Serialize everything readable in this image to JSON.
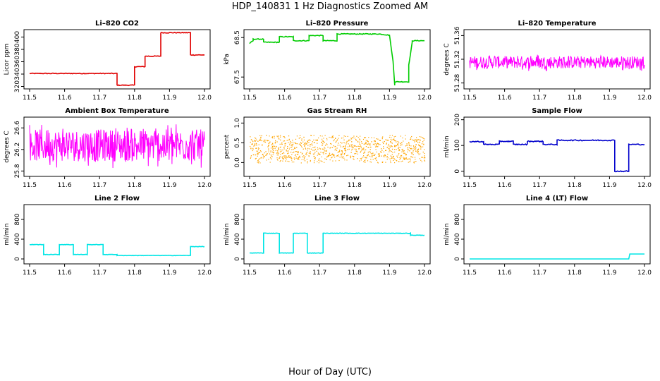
{
  "figure": {
    "title": "HDP_140831  1 Hz Diagnostics Zoomed AM",
    "xlabel": "Hour of Day (UTC)"
  },
  "chart_data": [
    {
      "type": "line",
      "title": "Li–820 CO2",
      "ylabel": "Licor ppm",
      "color": "#e00000",
      "xlim": [
        11.5,
        12.0
      ],
      "ylim": [
        316,
        412
      ],
      "xticks": [
        "11.5",
        "11.6",
        "11.7",
        "11.8",
        "11.9",
        "12.0"
      ],
      "yticks": [
        "320",
        "340",
        "360",
        "380",
        "400"
      ],
      "noise": 0.6,
      "x": [
        11.5,
        11.75,
        11.75,
        11.8,
        11.8,
        11.83,
        11.83,
        11.875,
        11.875,
        11.96,
        11.96,
        12.0
      ],
      "y": [
        341,
        341,
        322,
        322,
        352,
        352,
        369,
        369,
        407,
        407,
        371,
        371
      ]
    },
    {
      "type": "line",
      "title": "Li–820 Pressure",
      "ylabel": "kPa",
      "color": "#00cc00",
      "xlim": [
        11.5,
        12.0
      ],
      "ylim": [
        67.2,
        68.7
      ],
      "xticks": [
        "11.5",
        "11.6",
        "11.7",
        "11.8",
        "11.9",
        "12.0"
      ],
      "yticks": [
        "67.5",
        "68.5"
      ],
      "noise": 0.01,
      "x": [
        11.5,
        11.51,
        11.51,
        11.54,
        11.54,
        11.585,
        11.585,
        11.625,
        11.625,
        11.67,
        11.67,
        11.71,
        11.71,
        11.75,
        11.75,
        11.87,
        11.9,
        11.91,
        11.915,
        11.915,
        11.955,
        11.955,
        11.965,
        11.965,
        12.0
      ],
      "y": [
        68.35,
        68.42,
        68.46,
        68.46,
        68.38,
        68.38,
        68.52,
        68.52,
        68.42,
        68.42,
        68.55,
        68.55,
        68.42,
        68.42,
        68.59,
        68.59,
        68.56,
        67.9,
        67.3,
        67.38,
        67.38,
        67.8,
        68.38,
        68.42,
        68.42
      ]
    },
    {
      "type": "line",
      "title": "Li–820 Temperature",
      "ylabel": "degrees C",
      "color": "#ff00ff",
      "xlim": [
        11.5,
        12.0
      ],
      "ylim": [
        51.27,
        51.37
      ],
      "xticks": [
        "11.5",
        "11.6",
        "11.7",
        "11.8",
        "11.9",
        "12.0"
      ],
      "yticks": [
        "51.28",
        "51.32",
        "51.36"
      ],
      "noise_band": [
        51.3,
        51.33
      ],
      "x": [
        11.5,
        12.0
      ],
      "y": [
        51.315,
        51.315
      ]
    },
    {
      "type": "line",
      "title": "Ambient Box Temperature",
      "ylabel": "degrees C",
      "color": "#ff00ff",
      "xlim": [
        11.5,
        12.0
      ],
      "ylim": [
        25.7,
        26.8
      ],
      "xticks": [
        "11.5",
        "11.6",
        "11.7",
        "11.8",
        "11.9",
        "12.0"
      ],
      "yticks": [
        "25.8",
        "26.2",
        "26.6"
      ],
      "noise_band": [
        25.85,
        26.7
      ],
      "x": [
        11.5,
        12.0
      ],
      "y": [
        26.2,
        26.2
      ]
    },
    {
      "type": "scatter",
      "title": "Gas Stream RH",
      "ylabel": "percent",
      "color": "#ffa500",
      "xlim": [
        11.5,
        12.0
      ],
      "ylim": [
        -0.35,
        1.15
      ],
      "xticks": [
        "11.5",
        "11.6",
        "11.7",
        "11.8",
        "11.9",
        "12.0"
      ],
      "yticks": [
        "0.0",
        "0.5",
        "1.0"
      ],
      "noise_band": [
        0.0,
        0.7
      ],
      "x": [
        11.5,
        12.0
      ],
      "y": [
        0.35,
        0.35
      ]
    },
    {
      "type": "line",
      "title": "Sample Flow",
      "ylabel": "ml/min",
      "color": "#0000cc",
      "xlim": [
        11.5,
        12.0
      ],
      "ylim": [
        -20,
        210
      ],
      "xticks": [
        "11.5",
        "11.6",
        "11.7",
        "11.8",
        "11.9",
        "12.0"
      ],
      "yticks": [
        "0",
        "100",
        "200"
      ],
      "noise": 2,
      "x": [
        11.5,
        11.54,
        11.54,
        11.585,
        11.585,
        11.625,
        11.625,
        11.665,
        11.665,
        11.71,
        11.71,
        11.75,
        11.75,
        11.915,
        11.915,
        11.955,
        11.955,
        12.0
      ],
      "y": [
        115,
        115,
        104,
        104,
        116,
        116,
        104,
        104,
        116,
        116,
        104,
        104,
        120,
        120,
        0,
        0,
        104,
        104
      ]
    },
    {
      "type": "line",
      "title": "Line 2 Flow",
      "ylabel": "ml/min",
      "color": "#00e5e5",
      "xlim": [
        11.5,
        12.0
      ],
      "ylim": [
        -100,
        1100
      ],
      "xticks": [
        "11.5",
        "11.6",
        "11.7",
        "11.8",
        "11.9",
        "12.0"
      ],
      "yticks": [
        "0",
        "400",
        "800"
      ],
      "noise": 4,
      "x": [
        11.5,
        11.54,
        11.54,
        11.585,
        11.585,
        11.625,
        11.625,
        11.665,
        11.665,
        11.71,
        11.71,
        11.75,
        11.75,
        11.96,
        11.96,
        12.0
      ],
      "y": [
        290,
        290,
        90,
        90,
        290,
        290,
        90,
        90,
        290,
        290,
        90,
        90,
        70,
        70,
        250,
        250
      ]
    },
    {
      "type": "line",
      "title": "Line 3 Flow",
      "ylabel": "ml/min",
      "color": "#00e5e5",
      "xlim": [
        11.5,
        12.0
      ],
      "ylim": [
        -100,
        1100
      ],
      "xticks": [
        "11.5",
        "11.6",
        "11.7",
        "11.8",
        "11.9",
        "12.0"
      ],
      "yticks": [
        "0",
        "400",
        "800"
      ],
      "noise": 5,
      "x": [
        11.5,
        11.54,
        11.54,
        11.585,
        11.585,
        11.625,
        11.625,
        11.665,
        11.665,
        11.71,
        11.71,
        11.96,
        11.96,
        12.0
      ],
      "y": [
        120,
        120,
        520,
        520,
        120,
        120,
        520,
        520,
        120,
        120,
        520,
        520,
        480,
        480
      ]
    },
    {
      "type": "line",
      "title": "Line 4 (LT) Flow",
      "ylabel": "ml/min",
      "color": "#00e5e5",
      "xlim": [
        11.5,
        12.0
      ],
      "ylim": [
        -100,
        1100
      ],
      "xticks": [
        "11.5",
        "11.6",
        "11.7",
        "11.8",
        "11.9",
        "12.0"
      ],
      "yticks": [
        "0",
        "400",
        "800"
      ],
      "noise": 0,
      "x": [
        11.5,
        11.955,
        11.958,
        12.0
      ],
      "y": [
        0,
        0,
        100,
        100
      ]
    }
  ]
}
